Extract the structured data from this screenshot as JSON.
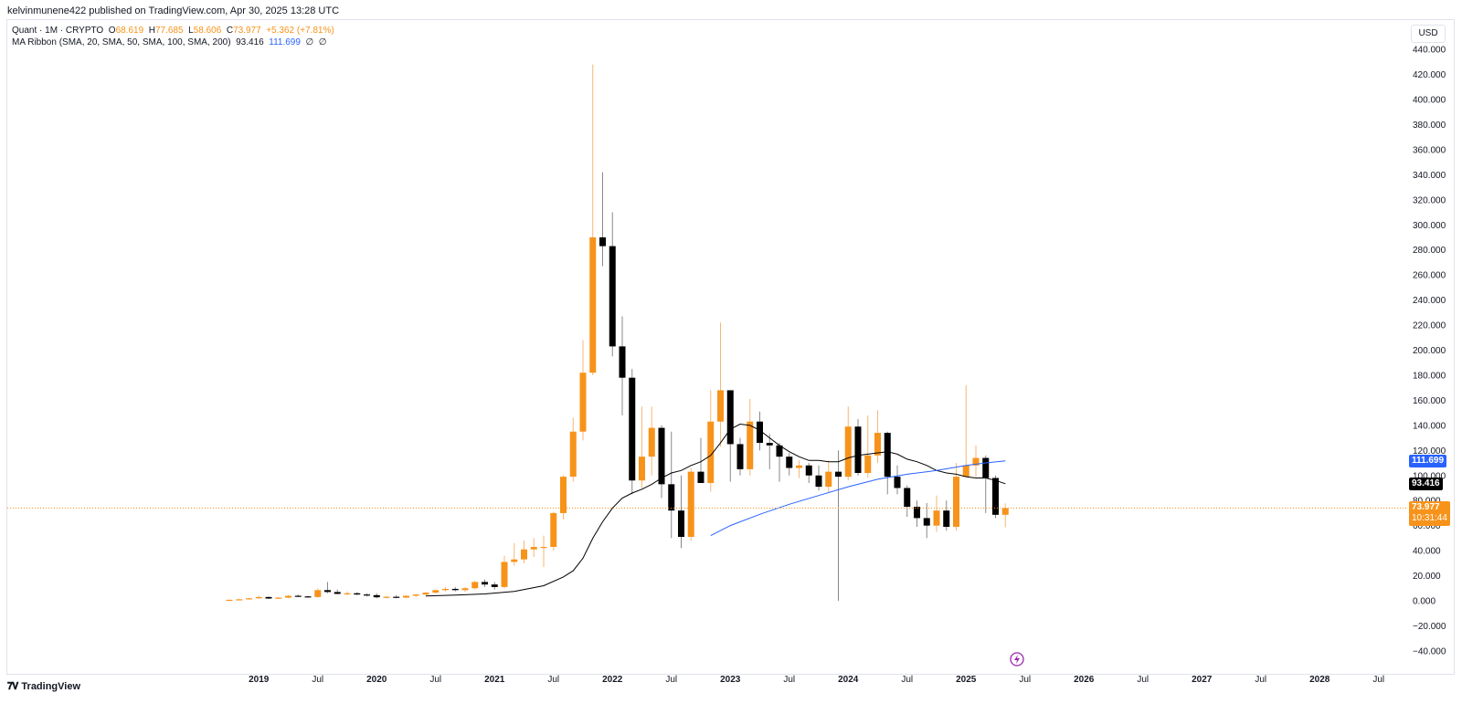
{
  "header": {
    "published": "kelvinmunene422 published on TradingView.com, Apr 30, 2025 13:28 UTC"
  },
  "legend": {
    "symbol": "Quant · 1M · CRYPTO",
    "o_label": "O",
    "o_value": "68.619",
    "h_label": "H",
    "h_value": "77.685",
    "l_label": "L",
    "l_value": "58.606",
    "c_label": "C",
    "c_value": "73.977",
    "change": "+5.362 (+7.81%)",
    "ma_label": "MA Ribbon (SMA, 20, SMA, 50, SMA, 100, SMA, 200)",
    "ma1_value": "93.416",
    "ma2_value": "111.699",
    "ma3_value": "∅",
    "ma4_value": "∅"
  },
  "currency_button": "USD",
  "price_tags": {
    "ma2": "111.699",
    "ma1": "93.416",
    "last_price": "73.977",
    "countdown": "10:31:44"
  },
  "footer": {
    "brand": "TradingView"
  },
  "colors": {
    "up": "#f7931a",
    "down": "#000000",
    "ma1": "#000000",
    "ma2": "#2962ff",
    "last_price": "#f7931a",
    "grid": "#e0e3eb"
  },
  "chart_data": {
    "type": "candlestick",
    "interval": "1M",
    "ylim": [
      -40,
      440
    ],
    "y_ticks": [
      -40,
      -20,
      0,
      20,
      40,
      60,
      80,
      100,
      120,
      140,
      160,
      180,
      200,
      220,
      240,
      260,
      280,
      300,
      320,
      340,
      360,
      380,
      400,
      420,
      440
    ],
    "y_tick_labels": [
      "−40.000",
      "−20.000",
      "0.000",
      "20.000",
      "40.000",
      "60.000",
      "80.000",
      "100.000",
      "120.000",
      "140.000",
      "160.000",
      "180.000",
      "200.000",
      "220.000",
      "240.000",
      "260.000",
      "280.000",
      "300.000",
      "320.000",
      "340.000",
      "360.000",
      "380.000",
      "400.000",
      "420.000",
      "440.000"
    ],
    "x_start": "2018-10",
    "x_ticks": [
      {
        "label": "2019",
        "month": "2019-01"
      },
      {
        "label": "Jul",
        "month": "2019-07"
      },
      {
        "label": "2020",
        "month": "2020-01"
      },
      {
        "label": "Jul",
        "month": "2020-07"
      },
      {
        "label": "2021",
        "month": "2021-01"
      },
      {
        "label": "Jul",
        "month": "2021-07"
      },
      {
        "label": "2022",
        "month": "2022-01"
      },
      {
        "label": "Jul",
        "month": "2022-07"
      },
      {
        "label": "2023",
        "month": "2023-01"
      },
      {
        "label": "Jul",
        "month": "2023-07"
      },
      {
        "label": "2024",
        "month": "2024-01"
      },
      {
        "label": "Jul",
        "month": "2024-07"
      },
      {
        "label": "2025",
        "month": "2025-01"
      },
      {
        "label": "Jul",
        "month": "2025-07"
      },
      {
        "label": "2026",
        "month": "2026-01"
      },
      {
        "label": "Jul",
        "month": "2026-07"
      },
      {
        "label": "2027",
        "month": "2027-01"
      },
      {
        "label": "Jul",
        "month": "2027-07"
      },
      {
        "label": "2028",
        "month": "2028-01"
      },
      {
        "label": "Jul",
        "month": "2028-07"
      }
    ],
    "last_price": 73.977,
    "ohlc": [
      {
        "m": "2018-10",
        "o": 0.5,
        "h": 1.0,
        "l": 0.2,
        "c": 0.8
      },
      {
        "m": "2018-11",
        "o": 0.8,
        "h": 1.5,
        "l": 0.6,
        "c": 1.2
      },
      {
        "m": "2018-12",
        "o": 1.2,
        "h": 2.5,
        "l": 0.9,
        "c": 2.0
      },
      {
        "m": "2019-01",
        "o": 2.0,
        "h": 4.0,
        "l": 1.5,
        "c": 3.0
      },
      {
        "m": "2019-02",
        "o": 3.0,
        "h": 3.5,
        "l": 1.5,
        "c": 1.8
      },
      {
        "m": "2019-03",
        "o": 1.8,
        "h": 3.0,
        "l": 1.5,
        "c": 2.5
      },
      {
        "m": "2019-04",
        "o": 2.5,
        "h": 4.5,
        "l": 2.0,
        "c": 4.0
      },
      {
        "m": "2019-05",
        "o": 4.0,
        "h": 5.0,
        "l": 3.0,
        "c": 3.5
      },
      {
        "m": "2019-06",
        "o": 3.5,
        "h": 4.0,
        "l": 2.5,
        "c": 3.0
      },
      {
        "m": "2019-07",
        "o": 3.0,
        "h": 10.0,
        "l": 2.5,
        "c": 8.5
      },
      {
        "m": "2019-08",
        "o": 8.5,
        "h": 15.0,
        "l": 6.0,
        "c": 7.0
      },
      {
        "m": "2019-09",
        "o": 7.0,
        "h": 9.0,
        "l": 5.0,
        "c": 5.5
      },
      {
        "m": "2019-10",
        "o": 5.5,
        "h": 7.5,
        "l": 4.5,
        "c": 6.0
      },
      {
        "m": "2019-11",
        "o": 6.0,
        "h": 7.0,
        "l": 4.5,
        "c": 5.0
      },
      {
        "m": "2019-12",
        "o": 5.0,
        "h": 6.0,
        "l": 3.5,
        "c": 4.5
      },
      {
        "m": "2020-01",
        "o": 4.5,
        "h": 6.0,
        "l": 2.0,
        "c": 2.8
      },
      {
        "m": "2020-02",
        "o": 2.8,
        "h": 4.0,
        "l": 2.0,
        "c": 3.2
      },
      {
        "m": "2020-03",
        "o": 3.2,
        "h": 4.5,
        "l": 2.0,
        "c": 2.5
      },
      {
        "m": "2020-04",
        "o": 2.5,
        "h": 4.5,
        "l": 2.0,
        "c": 4.0
      },
      {
        "m": "2020-05",
        "o": 4.0,
        "h": 5.5,
        "l": 3.0,
        "c": 5.0
      },
      {
        "m": "2020-06",
        "o": 5.0,
        "h": 7.0,
        "l": 4.0,
        "c": 6.5
      },
      {
        "m": "2020-07",
        "o": 6.5,
        "h": 9.0,
        "l": 5.5,
        "c": 8.5
      },
      {
        "m": "2020-08",
        "o": 8.5,
        "h": 11.0,
        "l": 7.5,
        "c": 9.5
      },
      {
        "m": "2020-09",
        "o": 9.5,
        "h": 11.0,
        "l": 7.5,
        "c": 8.5
      },
      {
        "m": "2020-10",
        "o": 8.5,
        "h": 11.0,
        "l": 7.0,
        "c": 10.0
      },
      {
        "m": "2020-11",
        "o": 10.0,
        "h": 16.0,
        "l": 9.0,
        "c": 15.0
      },
      {
        "m": "2020-12",
        "o": 15.0,
        "h": 17.0,
        "l": 11.0,
        "c": 13.0
      },
      {
        "m": "2021-01",
        "o": 13.0,
        "h": 15.0,
        "l": 9.0,
        "c": 11.0
      },
      {
        "m": "2021-02",
        "o": 11.0,
        "h": 36.0,
        "l": 10.0,
        "c": 31.0
      },
      {
        "m": "2021-03",
        "o": 31.0,
        "h": 46.0,
        "l": 28.0,
        "c": 33.0
      },
      {
        "m": "2021-04",
        "o": 33.0,
        "h": 48.0,
        "l": 30.0,
        "c": 41.0
      },
      {
        "m": "2021-05",
        "o": 41.0,
        "h": 50.0,
        "l": 35.0,
        "c": 43.0
      },
      {
        "m": "2021-06",
        "o": 43.0,
        "h": 52.0,
        "l": 27.0,
        "c": 43.0
      },
      {
        "m": "2021-07",
        "o": 43.0,
        "h": 71.0,
        "l": 40.0,
        "c": 70.0
      },
      {
        "m": "2021-08",
        "o": 70.0,
        "h": 100.0,
        "l": 65.0,
        "c": 99.0
      },
      {
        "m": "2021-09",
        "o": 99.0,
        "h": 146.0,
        "l": 95.0,
        "c": 135.0
      },
      {
        "m": "2021-10",
        "o": 135.0,
        "h": 208.0,
        "l": 128.0,
        "c": 182.0
      },
      {
        "m": "2021-11",
        "o": 182.0,
        "h": 428.0,
        "l": 180.0,
        "c": 290.0
      },
      {
        "m": "2021-12",
        "o": 290.0,
        "h": 342.0,
        "l": 267.0,
        "c": 283.0
      },
      {
        "m": "2022-01",
        "o": 283.0,
        "h": 310.0,
        "l": 195.0,
        "c": 203.0
      },
      {
        "m": "2022-02",
        "o": 203.0,
        "h": 227.0,
        "l": 148.0,
        "c": 178.0
      },
      {
        "m": "2022-03",
        "o": 178.0,
        "h": 185.0,
        "l": 85.0,
        "c": 96.0
      },
      {
        "m": "2022-04",
        "o": 96.0,
        "h": 155.0,
        "l": 90.0,
        "c": 115.0
      },
      {
        "m": "2022-05",
        "o": 115.0,
        "h": 155.0,
        "l": 100.0,
        "c": 138.0
      },
      {
        "m": "2022-06",
        "o": 138.0,
        "h": 140.0,
        "l": 82.0,
        "c": 93.0
      },
      {
        "m": "2022-07",
        "o": 93.0,
        "h": 135.0,
        "l": 50.0,
        "c": 72.0
      },
      {
        "m": "2022-08",
        "o": 72.0,
        "h": 100.0,
        "l": 42.0,
        "c": 51.0
      },
      {
        "m": "2022-09",
        "o": 51.0,
        "h": 106.0,
        "l": 48.0,
        "c": 103.0
      },
      {
        "m": "2022-10",
        "o": 103.0,
        "h": 130.0,
        "l": 95.0,
        "c": 94.0
      },
      {
        "m": "2022-11",
        "o": 94.0,
        "h": 168.0,
        "l": 87.0,
        "c": 143.0
      },
      {
        "m": "2022-12",
        "o": 143.0,
        "h": 222.0,
        "l": 123.0,
        "c": 168.0
      },
      {
        "m": "2023-01",
        "o": 168.0,
        "h": 165.0,
        "l": 95.0,
        "c": 125.0
      },
      {
        "m": "2023-02",
        "o": 125.0,
        "h": 130.0,
        "l": 100.0,
        "c": 105.0
      },
      {
        "m": "2023-03",
        "o": 105.0,
        "h": 161.0,
        "l": 100.0,
        "c": 143.0
      },
      {
        "m": "2023-04",
        "o": 143.0,
        "h": 151.0,
        "l": 120.0,
        "c": 126.0
      },
      {
        "m": "2023-05",
        "o": 126.0,
        "h": 133.0,
        "l": 105.0,
        "c": 124.0
      },
      {
        "m": "2023-06",
        "o": 124.0,
        "h": 126.0,
        "l": 95.0,
        "c": 115.0
      },
      {
        "m": "2023-07",
        "o": 115.0,
        "h": 118.0,
        "l": 100.0,
        "c": 106.0
      },
      {
        "m": "2023-08",
        "o": 106.0,
        "h": 112.0,
        "l": 98.0,
        "c": 108.0
      },
      {
        "m": "2023-09",
        "o": 108.0,
        "h": 110.0,
        "l": 94.0,
        "c": 100.0
      },
      {
        "m": "2023-10",
        "o": 100.0,
        "h": 108.0,
        "l": 88.0,
        "c": 91.0
      },
      {
        "m": "2023-11",
        "o": 91.0,
        "h": 112.0,
        "l": 86.0,
        "c": 103.0
      },
      {
        "m": "2023-12",
        "o": 103.0,
        "h": 120.0,
        "l": 0.0,
        "c": 99.0
      },
      {
        "m": "2024-01",
        "o": 99.0,
        "h": 155.0,
        "l": 96.0,
        "c": 139.0
      },
      {
        "m": "2024-02",
        "o": 139.0,
        "h": 145.0,
        "l": 100.0,
        "c": 102.0
      },
      {
        "m": "2024-03",
        "o": 102.0,
        "h": 148.0,
        "l": 98.0,
        "c": 116.0
      },
      {
        "m": "2024-04",
        "o": 116.0,
        "h": 152.0,
        "l": 110.0,
        "c": 134.0
      },
      {
        "m": "2024-05",
        "o": 134.0,
        "h": 135.0,
        "l": 85.0,
        "c": 99.0
      },
      {
        "m": "2024-06",
        "o": 99.0,
        "h": 108.0,
        "l": 85.0,
        "c": 90.0
      },
      {
        "m": "2024-07",
        "o": 90.0,
        "h": 92.0,
        "l": 67.0,
        "c": 75.0
      },
      {
        "m": "2024-08",
        "o": 75.0,
        "h": 80.0,
        "l": 59.0,
        "c": 66.0
      },
      {
        "m": "2024-09",
        "o": 66.0,
        "h": 78.0,
        "l": 50.0,
        "c": 60.0
      },
      {
        "m": "2024-10",
        "o": 60.0,
        "h": 84.0,
        "l": 55.0,
        "c": 72.0
      },
      {
        "m": "2024-11",
        "o": 72.0,
        "h": 80.0,
        "l": 56.0,
        "c": 59.0
      },
      {
        "m": "2024-12",
        "o": 59.0,
        "h": 110.0,
        "l": 56.0,
        "c": 99.0
      },
      {
        "m": "2025-01",
        "o": 99.0,
        "h": 172.0,
        "l": 99.0,
        "c": 108.0
      },
      {
        "m": "2025-02",
        "o": 108.0,
        "h": 124.0,
        "l": 99.0,
        "c": 114.0
      },
      {
        "m": "2025-03",
        "o": 114.0,
        "h": 116.0,
        "l": 70.0,
        "c": 98.0
      },
      {
        "m": "2025-04",
        "o": 98.0,
        "h": 100.0,
        "l": 66.0,
        "c": 68.619
      },
      {
        "m": "2025-05",
        "o": 68.619,
        "h": 77.685,
        "l": 58.606,
        "c": 73.977
      }
    ],
    "series": [
      {
        "name": "SMA 20",
        "points": [
          [
            "2020-06",
            3.8
          ],
          [
            "2020-09",
            4.5
          ],
          [
            "2020-12",
            5.5
          ],
          [
            "2021-03",
            7.5
          ],
          [
            "2021-06",
            12
          ],
          [
            "2021-08",
            19
          ],
          [
            "2021-09",
            24
          ],
          [
            "2021-10",
            34
          ],
          [
            "2021-11",
            50
          ],
          [
            "2021-12",
            63
          ],
          [
            "2022-01",
            74
          ],
          [
            "2022-02",
            82
          ],
          [
            "2022-03",
            86
          ],
          [
            "2022-04",
            89
          ],
          [
            "2022-05",
            93
          ],
          [
            "2022-06",
            98
          ],
          [
            "2022-07",
            102
          ],
          [
            "2022-08",
            104
          ],
          [
            "2022-09",
            108
          ],
          [
            "2022-10",
            111
          ],
          [
            "2022-11",
            116
          ],
          [
            "2022-12",
            126
          ],
          [
            "2023-01",
            137
          ],
          [
            "2023-02",
            141
          ],
          [
            "2023-03",
            140
          ],
          [
            "2023-04",
            136
          ],
          [
            "2023-05",
            130
          ],
          [
            "2023-06",
            124
          ],
          [
            "2023-07",
            119
          ],
          [
            "2023-08",
            115
          ],
          [
            "2023-09",
            112
          ],
          [
            "2023-10",
            112
          ],
          [
            "2023-11",
            111
          ],
          [
            "2023-12",
            111
          ],
          [
            "2024-01",
            114
          ],
          [
            "2024-02",
            116
          ],
          [
            "2024-03",
            117
          ],
          [
            "2024-04",
            118
          ],
          [
            "2024-05",
            119
          ],
          [
            "2024-06",
            117
          ],
          [
            "2024-07",
            113
          ],
          [
            "2024-08",
            111
          ],
          [
            "2024-09",
            108
          ],
          [
            "2024-10",
            104
          ],
          [
            "2024-11",
            102
          ],
          [
            "2024-12",
            101
          ],
          [
            "2025-01",
            99
          ],
          [
            "2025-02",
            98
          ],
          [
            "2025-03",
            98
          ],
          [
            "2025-04",
            96
          ],
          [
            "2025-05",
            93.4
          ]
        ]
      },
      {
        "name": "SMA 50",
        "points": [
          [
            "2022-11",
            52
          ],
          [
            "2023-01",
            60
          ],
          [
            "2023-04",
            69
          ],
          [
            "2023-07",
            77
          ],
          [
            "2023-10",
            84
          ],
          [
            "2024-01",
            91
          ],
          [
            "2024-04",
            97
          ],
          [
            "2024-07",
            101
          ],
          [
            "2024-10",
            104
          ],
          [
            "2025-01",
            108
          ],
          [
            "2025-03",
            110
          ],
          [
            "2025-05",
            111.7
          ]
        ]
      }
    ]
  }
}
